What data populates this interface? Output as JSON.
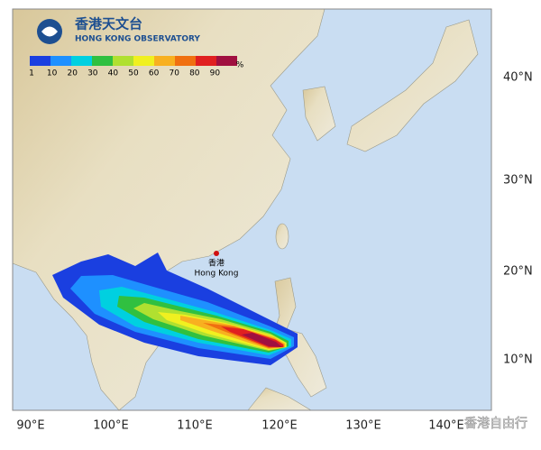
{
  "header": {
    "title_zh": "香港天文台",
    "title_en": "HONG KONG OBSERVATORY"
  },
  "legend": {
    "labels": [
      "1",
      "10",
      "20",
      "30",
      "40",
      "50",
      "60",
      "70",
      "80",
      "90"
    ],
    "unit": "%"
  },
  "map": {
    "longitude_labels": [
      "90°E",
      "100°E",
      "110°E",
      "120°E",
      "130°E",
      "140°E"
    ],
    "latitude_labels": [
      "40°N",
      "30°N",
      "20°N",
      "10°N"
    ],
    "place": {
      "name_zh": "香港",
      "name_en": "Hong Kong"
    }
  },
  "watermark": "香港自由行"
}
